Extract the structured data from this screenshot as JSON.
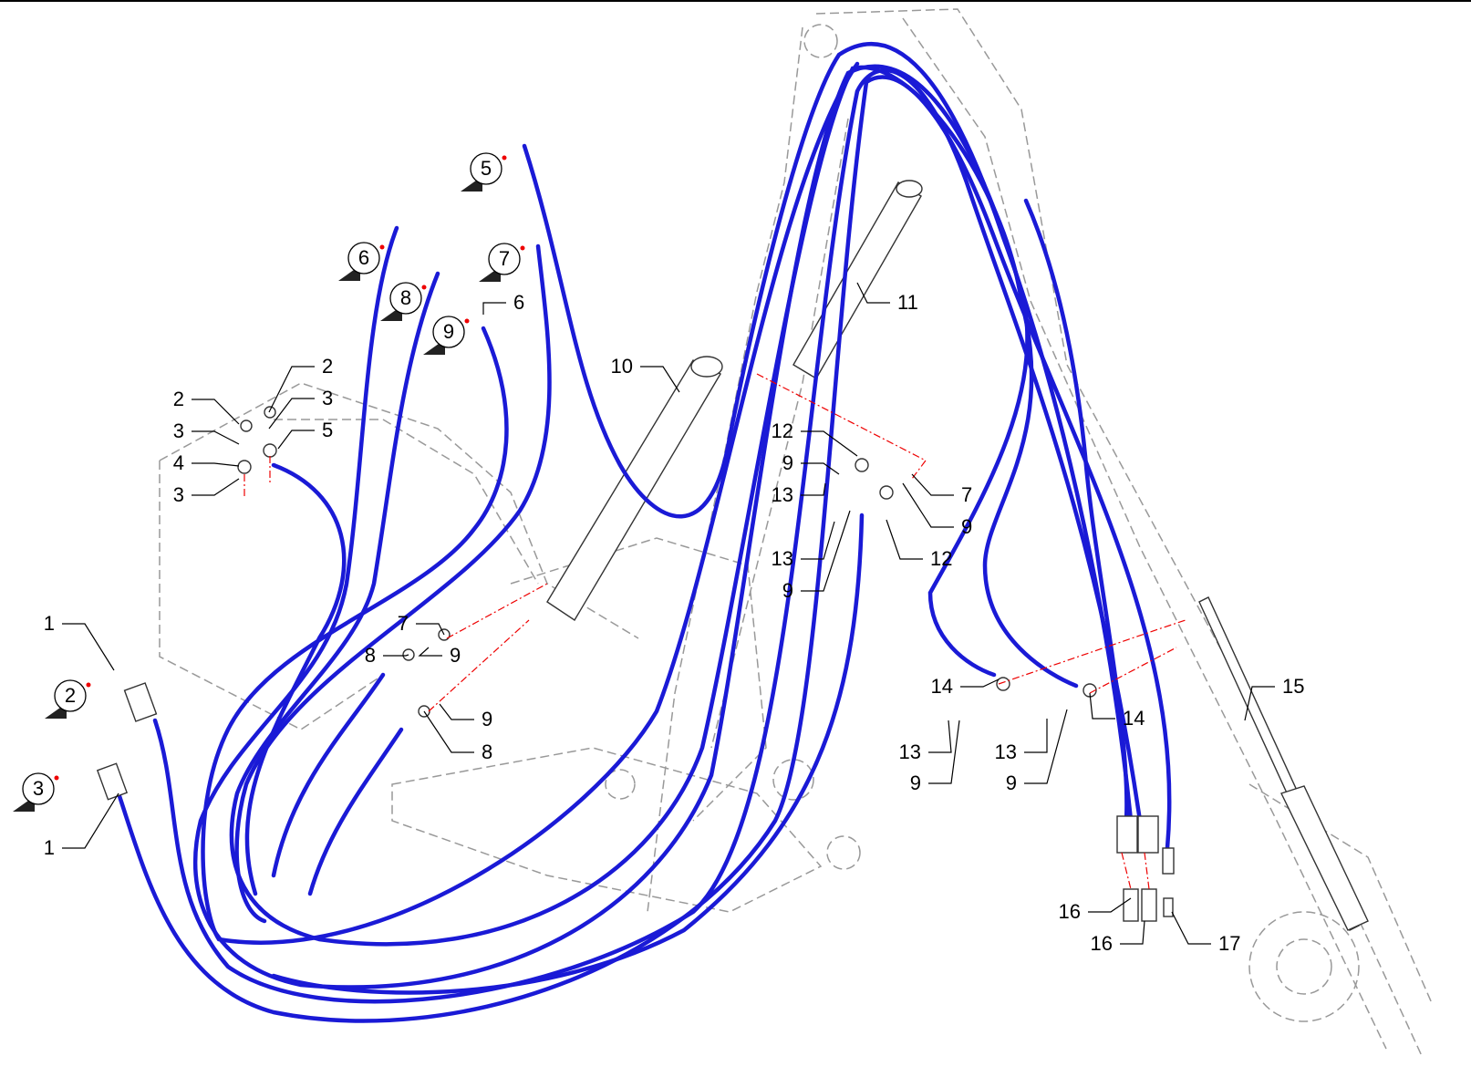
{
  "flags": [
    {
      "label": "5"
    },
    {
      "label": "6"
    },
    {
      "label": "7"
    },
    {
      "label": "8"
    },
    {
      "label": "9"
    },
    {
      "label": "2"
    },
    {
      "label": "3"
    }
  ],
  "callouts": [
    {
      "label": "2"
    },
    {
      "label": "3"
    },
    {
      "label": "4"
    },
    {
      "label": "3"
    },
    {
      "label": "2"
    },
    {
      "label": "3"
    },
    {
      "label": "5"
    },
    {
      "label": "1"
    },
    {
      "label": "1"
    },
    {
      "label": "6"
    },
    {
      "label": "10"
    },
    {
      "label": "11"
    },
    {
      "label": "12"
    },
    {
      "label": "9"
    },
    {
      "label": "13"
    },
    {
      "label": "13"
    },
    {
      "label": "9"
    },
    {
      "label": "7"
    },
    {
      "label": "9"
    },
    {
      "label": "12"
    },
    {
      "label": "7"
    },
    {
      "label": "8"
    },
    {
      "label": "9"
    },
    {
      "label": "9"
    },
    {
      "label": "8"
    },
    {
      "label": "14"
    },
    {
      "label": "14"
    },
    {
      "label": "13"
    },
    {
      "label": "9"
    },
    {
      "label": "13"
    },
    {
      "label": "9"
    },
    {
      "label": "15"
    },
    {
      "label": "16"
    },
    {
      "label": "16"
    },
    {
      "label": "17"
    }
  ]
}
